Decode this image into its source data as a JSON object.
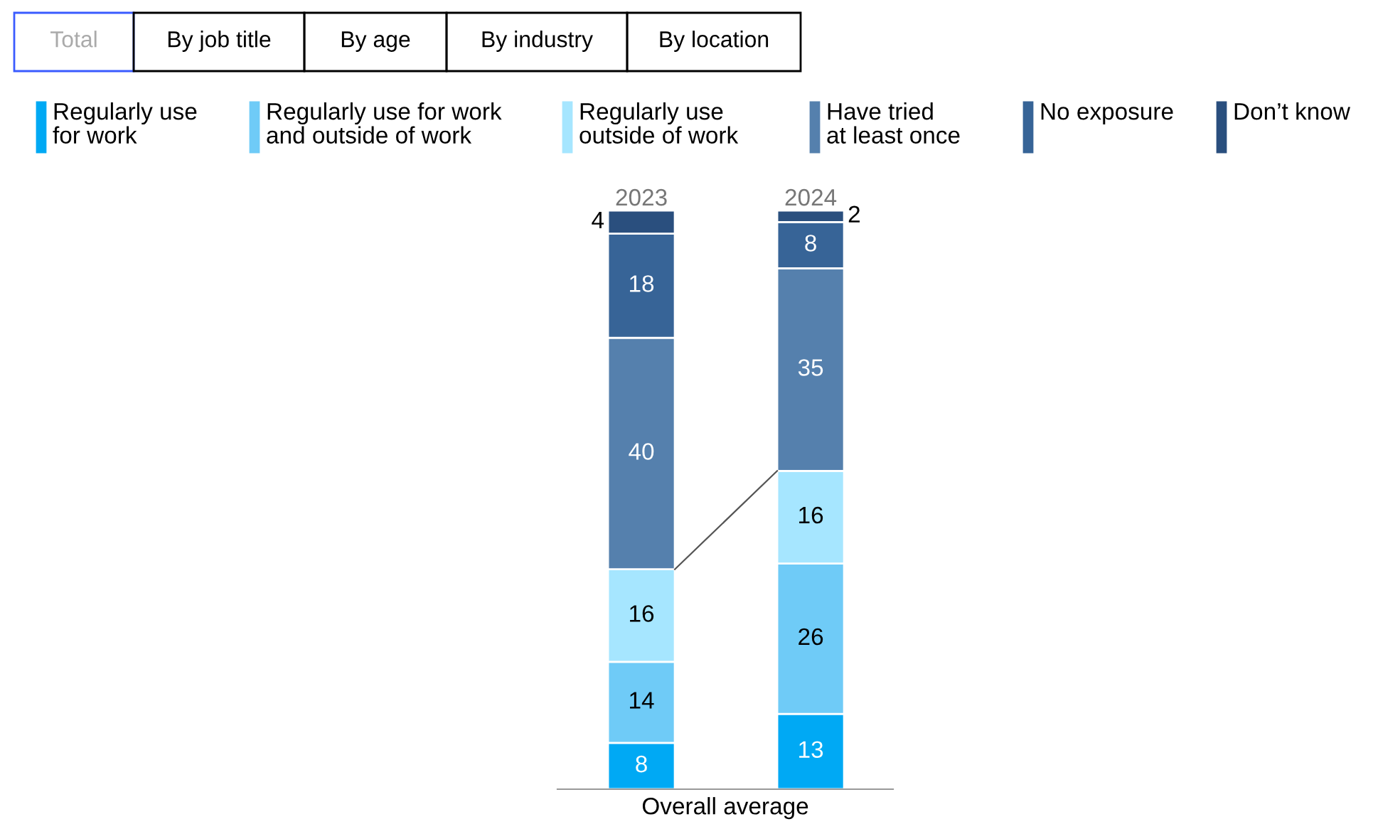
{
  "chart_data": {
    "type": "bar",
    "stacked": true,
    "data_labels": true,
    "legend": "top",
    "xlabel": "Overall average",
    "categories": [
      "2023",
      "2024"
    ],
    "annotations": [
      "Total",
      "By job title",
      "By age",
      "By industry",
      "By location"
    ],
    "series": [
      {
        "name": "Regularly use\nfor work",
        "color": "#00a9f4",
        "values": [
          8,
          13
        ]
      },
      {
        "name": "Regularly use for work\nand outside of work",
        "color": "#6fcbf7",
        "values": [
          14,
          26
        ]
      },
      {
        "name": "Regularly use\noutside of work",
        "color": "#a6e6ff",
        "values": [
          16,
          16
        ]
      },
      {
        "name": "Have tried\nat least once",
        "color": "#5580ad",
        "values": [
          40,
          35
        ]
      },
      {
        "name": "No exposure",
        "color": "#376497",
        "values": [
          18,
          8
        ]
      },
      {
        "name": "Don’t know",
        "color": "#2a4f7e",
        "values": [
          4,
          2
        ]
      }
    ]
  }
}
